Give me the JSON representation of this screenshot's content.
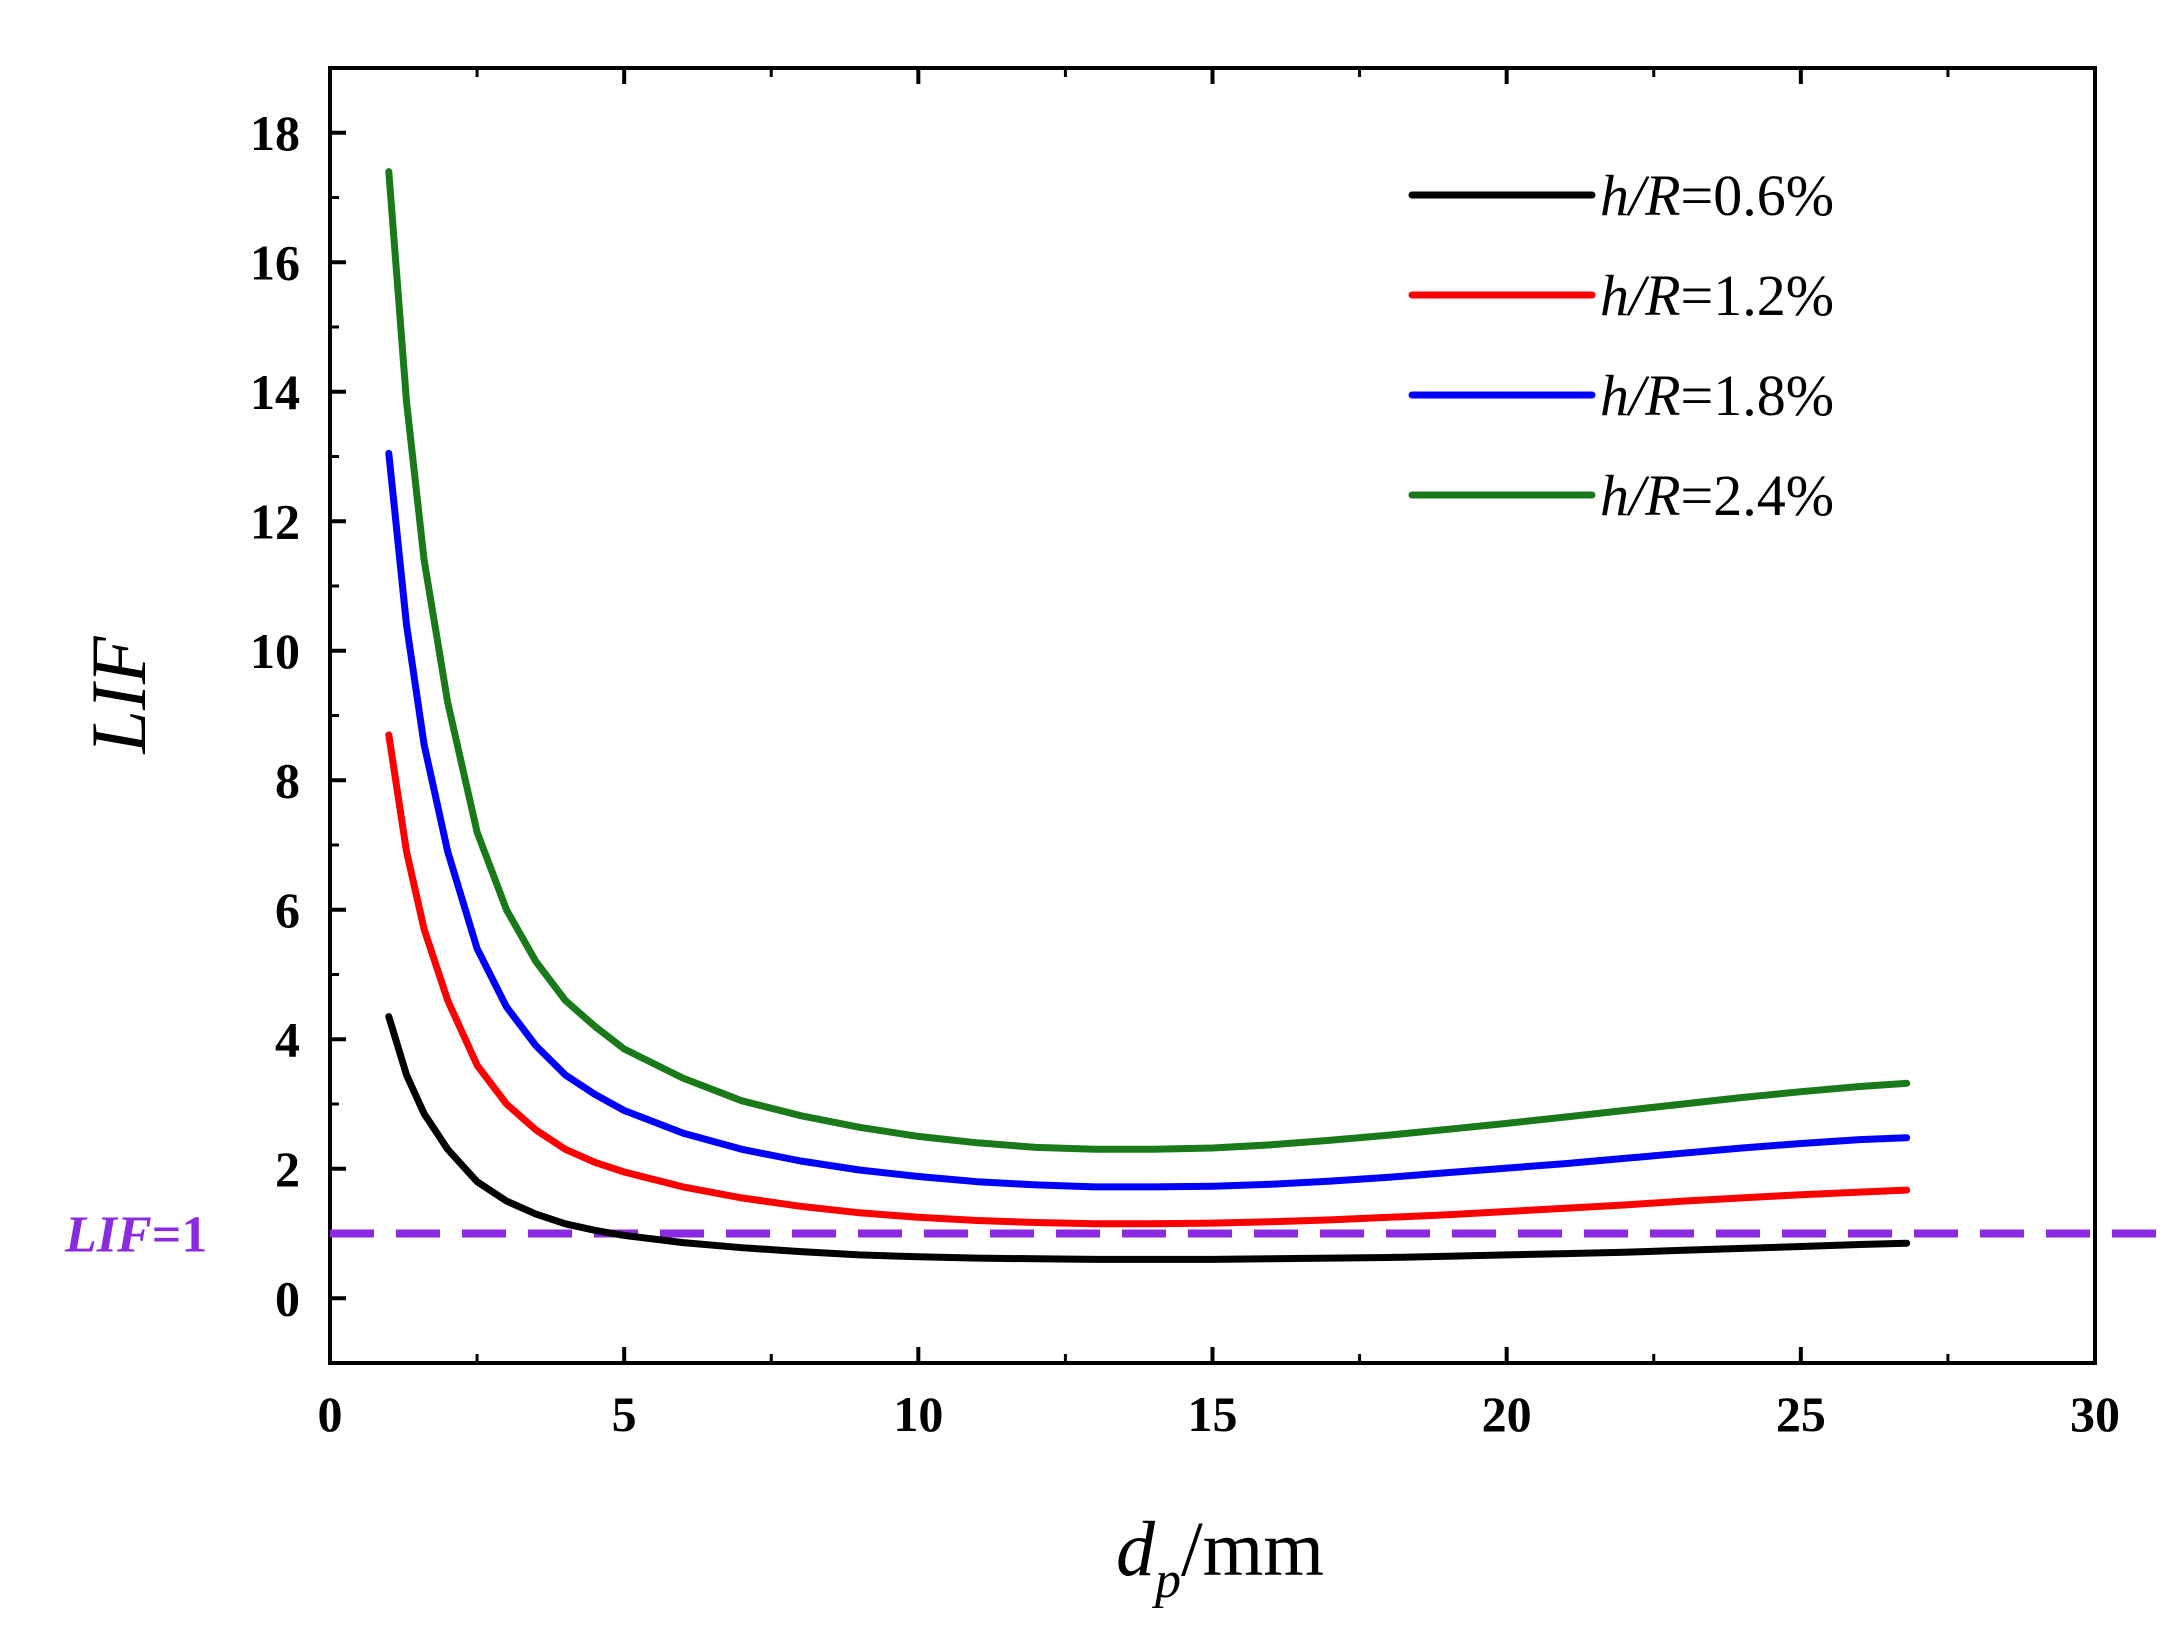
{
  "chart_data": {
    "type": "line",
    "title": "",
    "xlabel": {
      "main": "d",
      "sub": "p",
      "unit": "/mm"
    },
    "ylabel": "LIF",
    "xlim": [
      0,
      30
    ],
    "ylim": [
      -1,
      19
    ],
    "x_ticks": [
      0,
      5,
      10,
      15,
      20,
      25,
      30
    ],
    "y_ticks": [
      0,
      2,
      4,
      6,
      8,
      10,
      12,
      14,
      16,
      18
    ],
    "grid": false,
    "legend_position": "top-right",
    "series": [
      {
        "name": "h/R=0.6%",
        "name_italic": "h/R",
        "name_rest": "=0.6%",
        "color": "#000000",
        "x": [
          1.0,
          1.3,
          1.6,
          2.0,
          2.5,
          3.0,
          3.5,
          4.0,
          4.5,
          5.0,
          6.0,
          7.0,
          8.0,
          9.0,
          10.0,
          11.0,
          12.0,
          13.0,
          14.0,
          15.0,
          16.0,
          17.0,
          18.0,
          19.0,
          20.0,
          21.0,
          22.0,
          23.0,
          24.0,
          25.0,
          26.0,
          26.8
        ],
        "y": [
          4.35,
          3.45,
          2.85,
          2.3,
          1.8,
          1.5,
          1.3,
          1.15,
          1.05,
          0.97,
          0.86,
          0.78,
          0.72,
          0.67,
          0.64,
          0.62,
          0.61,
          0.6,
          0.6,
          0.6,
          0.61,
          0.62,
          0.63,
          0.65,
          0.67,
          0.69,
          0.71,
          0.74,
          0.77,
          0.8,
          0.83,
          0.85
        ]
      },
      {
        "name": "h/R=1.2%",
        "name_italic": "h/R",
        "name_rest": "=1.2%",
        "color": "#ff0000",
        "x": [
          1.0,
          1.3,
          1.6,
          2.0,
          2.5,
          3.0,
          3.5,
          4.0,
          4.5,
          5.0,
          6.0,
          7.0,
          8.0,
          9.0,
          10.0,
          11.0,
          12.0,
          13.0,
          14.0,
          15.0,
          16.0,
          17.0,
          18.0,
          19.0,
          20.0,
          21.0,
          22.0,
          23.0,
          24.0,
          25.0,
          26.0,
          26.8
        ],
        "y": [
          8.7,
          6.9,
          5.7,
          4.6,
          3.6,
          3.0,
          2.6,
          2.3,
          2.1,
          1.95,
          1.72,
          1.55,
          1.42,
          1.32,
          1.25,
          1.2,
          1.17,
          1.15,
          1.15,
          1.16,
          1.18,
          1.21,
          1.25,
          1.29,
          1.34,
          1.39,
          1.44,
          1.5,
          1.55,
          1.6,
          1.64,
          1.67
        ]
      },
      {
        "name": "h/R=1.8%",
        "name_italic": "h/R",
        "name_rest": "=1.8%",
        "color": "#0000ff",
        "x": [
          1.0,
          1.3,
          1.6,
          2.0,
          2.5,
          3.0,
          3.5,
          4.0,
          4.5,
          5.0,
          6.0,
          7.0,
          8.0,
          9.0,
          10.0,
          11.0,
          12.0,
          13.0,
          14.0,
          15.0,
          16.0,
          17.0,
          18.0,
          19.0,
          20.0,
          21.0,
          22.0,
          23.0,
          24.0,
          25.0,
          26.0,
          26.8
        ],
        "y": [
          13.05,
          10.4,
          8.55,
          6.9,
          5.4,
          4.5,
          3.9,
          3.45,
          3.15,
          2.9,
          2.55,
          2.3,
          2.12,
          1.98,
          1.88,
          1.8,
          1.75,
          1.72,
          1.72,
          1.73,
          1.76,
          1.81,
          1.87,
          1.94,
          2.01,
          2.08,
          2.16,
          2.24,
          2.32,
          2.39,
          2.45,
          2.48
        ]
      },
      {
        "name": "h/R=2.4%",
        "name_italic": "h/R",
        "name_rest": "=2.4%",
        "color": "#1a7a1a",
        "x": [
          1.0,
          1.3,
          1.6,
          2.0,
          2.5,
          3.0,
          3.5,
          4.0,
          4.5,
          5.0,
          6.0,
          7.0,
          8.0,
          9.0,
          10.0,
          11.0,
          12.0,
          13.0,
          14.0,
          15.0,
          16.0,
          17.0,
          18.0,
          19.0,
          20.0,
          21.0,
          22.0,
          23.0,
          24.0,
          25.0,
          26.0,
          26.8
        ],
        "y": [
          17.4,
          13.85,
          11.4,
          9.2,
          7.2,
          6.0,
          5.2,
          4.6,
          4.2,
          3.85,
          3.4,
          3.05,
          2.82,
          2.64,
          2.5,
          2.4,
          2.33,
          2.3,
          2.3,
          2.32,
          2.37,
          2.44,
          2.52,
          2.61,
          2.7,
          2.8,
          2.9,
          3.0,
          3.1,
          3.19,
          3.27,
          3.32
        ]
      }
    ],
    "reference_line": {
      "label_italic": "LIF",
      "label_rest": "=1",
      "y": 1,
      "color": "#8a2be2",
      "style": "dashed"
    }
  }
}
